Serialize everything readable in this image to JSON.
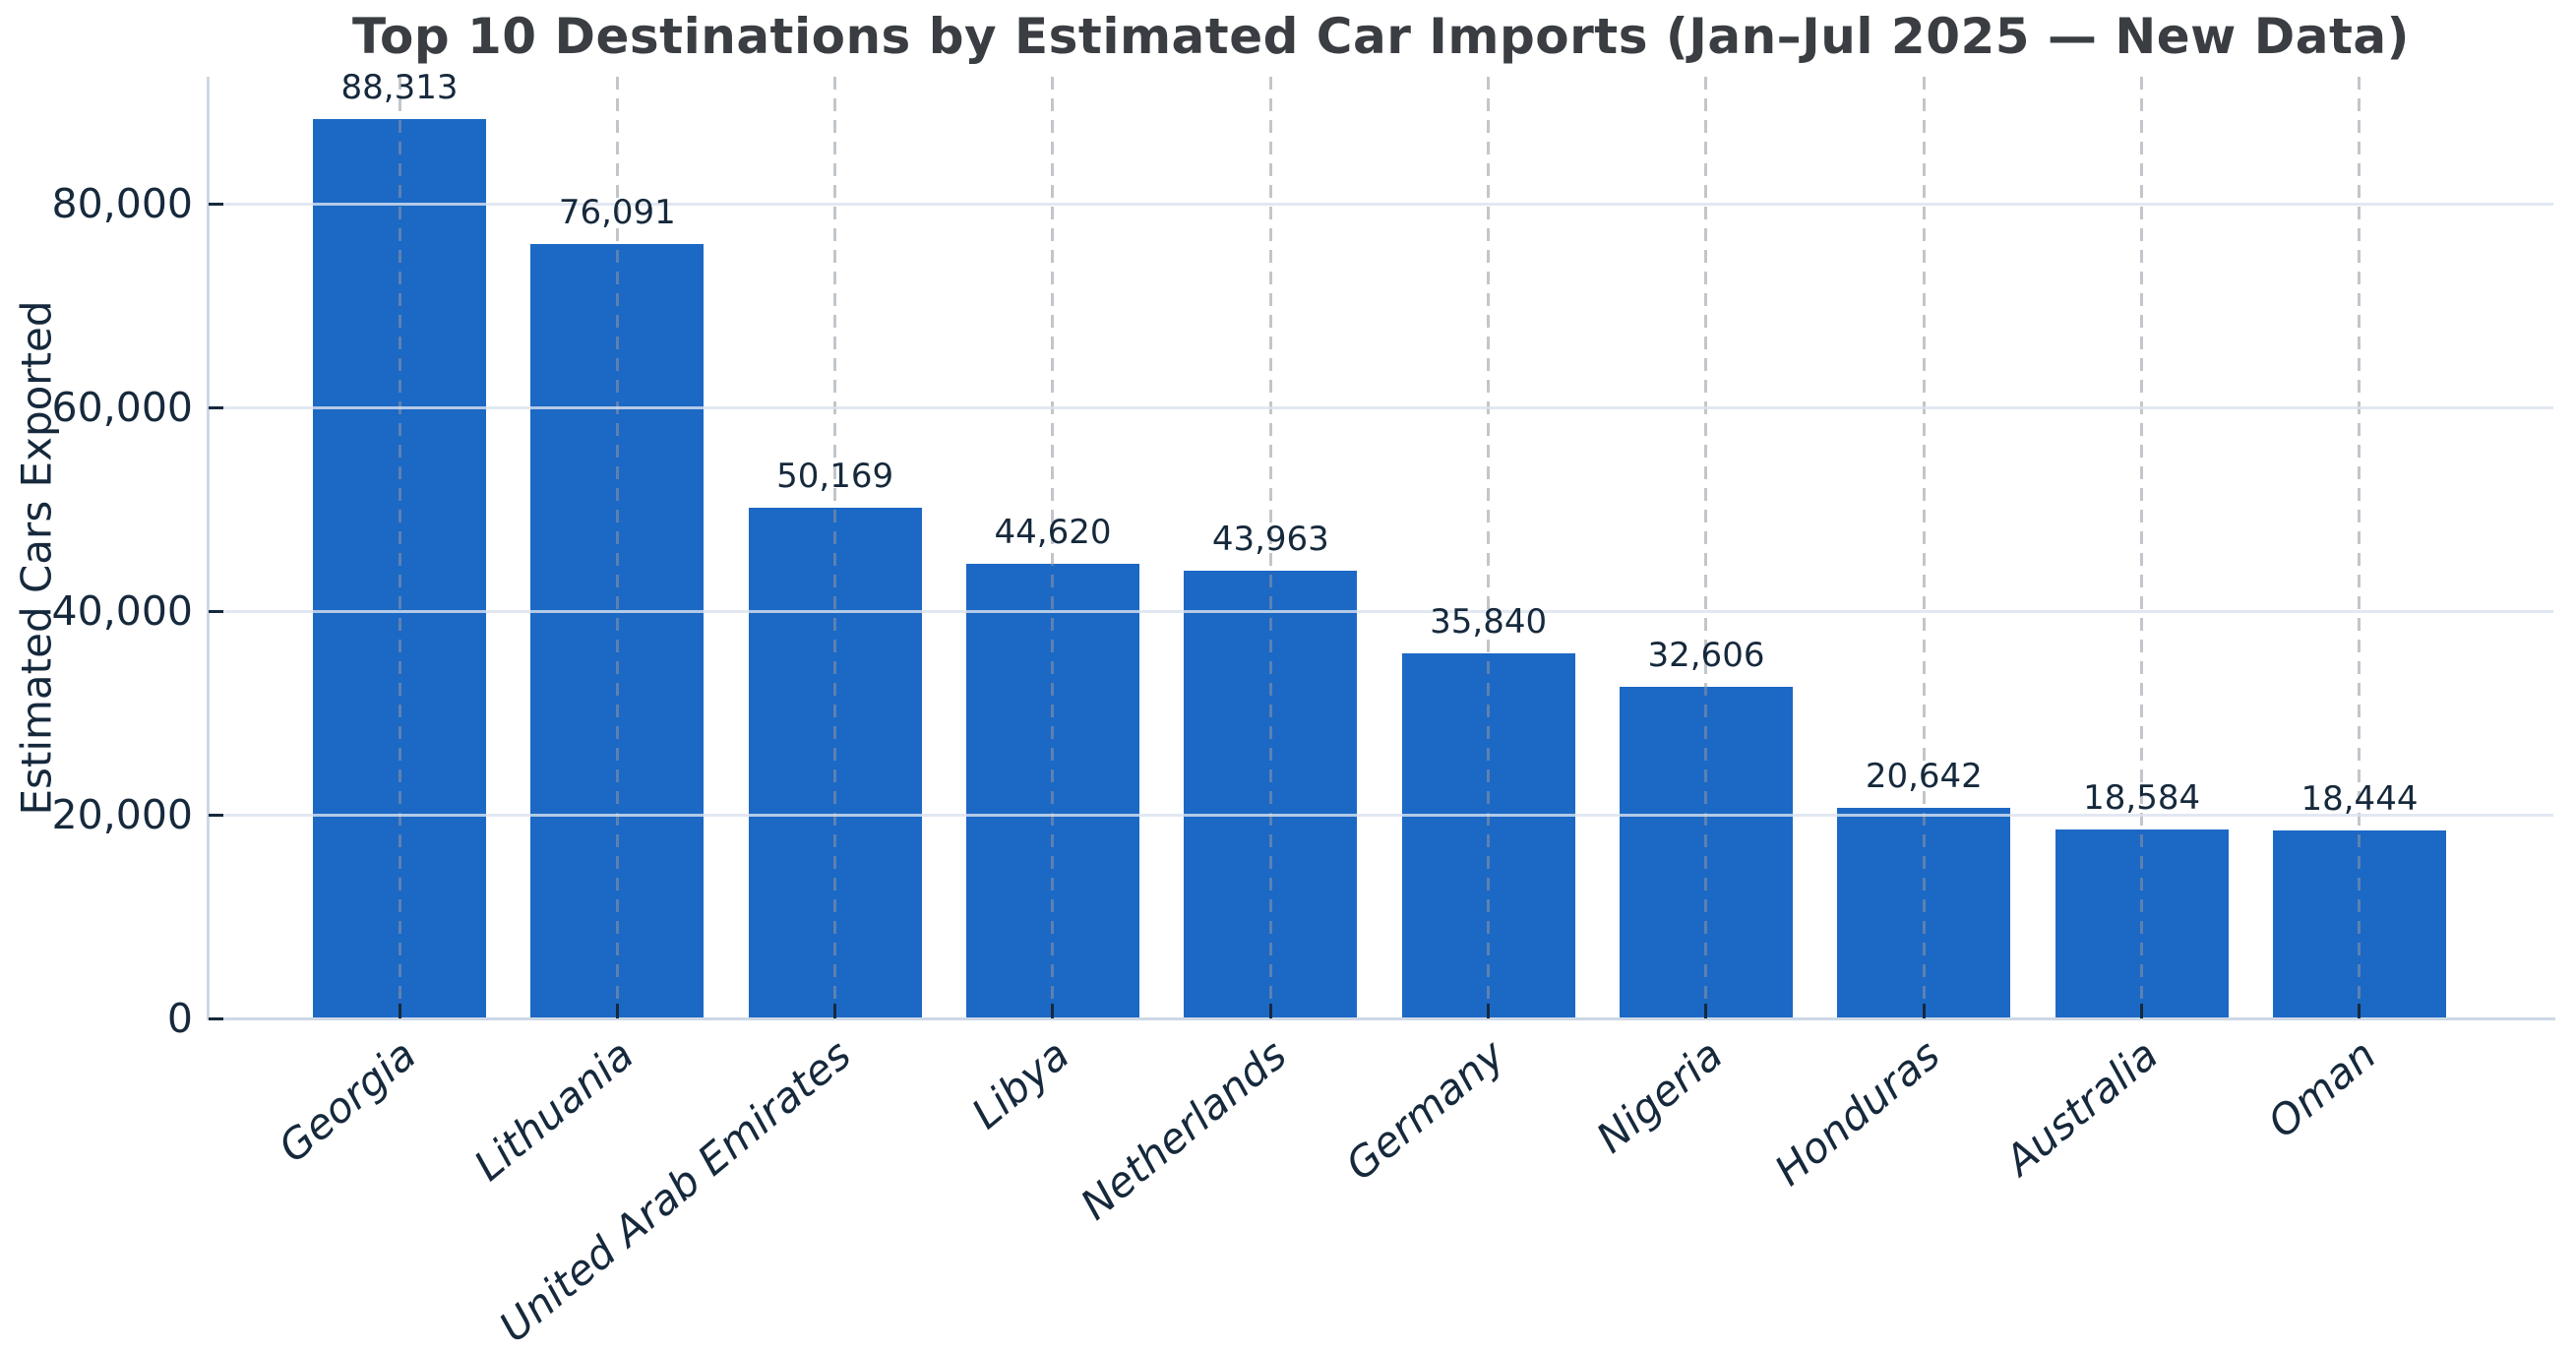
{
  "chart_data": {
    "type": "bar",
    "title": "Top 10 Destinations by Estimated Car Imports (Jan–Jul 2025 — New Data)",
    "xlabel": "",
    "ylabel": "Estimated Cars Exported",
    "categories": [
      "Georgia",
      "Lithuania",
      "United Arab Emirates",
      "Libya",
      "Netherlands",
      "Germany",
      "Nigeria",
      "Honduras",
      "Australia",
      "Oman"
    ],
    "values": [
      88313,
      76091,
      50169,
      44620,
      43963,
      35840,
      32606,
      20642,
      18584,
      18444
    ],
    "value_labels": [
      "88,313",
      "76,091",
      "50,169",
      "44,620",
      "43,963",
      "35,840",
      "32,606",
      "20,642",
      "18,584",
      "18,444"
    ],
    "yticks": [
      {
        "value": 0,
        "label": "0"
      },
      {
        "value": 20000,
        "label": "20,000"
      },
      {
        "value": 40000,
        "label": "40,000"
      },
      {
        "value": 60000,
        "label": "60,000"
      },
      {
        "value": 80000,
        "label": "80,000"
      }
    ],
    "ylim": [
      0,
      92500
    ],
    "grid": {
      "horizontal_solid": true,
      "vertical_dashed": true,
      "drawn_over_bars": true
    },
    "legend": "none",
    "colors": {
      "bar": "#1c68c5",
      "horizontal_grid": "#d9e2ef",
      "vertical_grid_dash": "#c3c7cc",
      "spine": "#cdd8e6",
      "tick_text": "#16293c",
      "title_text": "#3a3d41"
    }
  }
}
